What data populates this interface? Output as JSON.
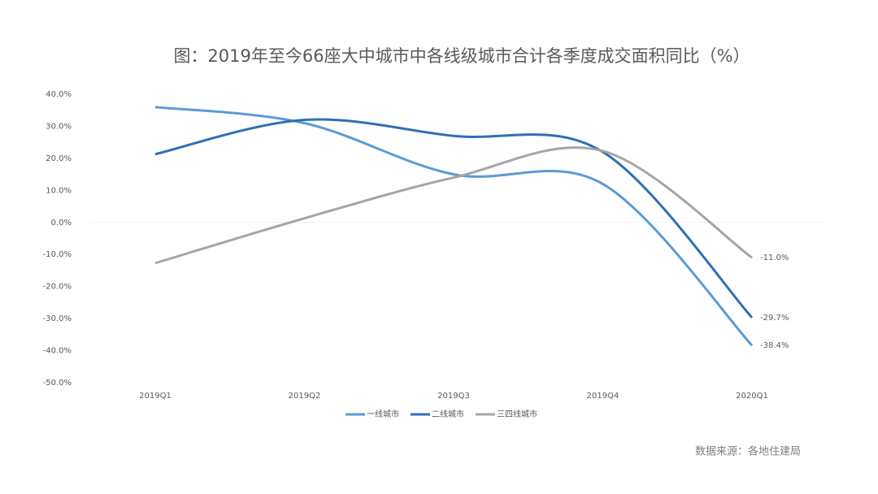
{
  "chart_data": {
    "type": "line",
    "title": "图：2019年至今66座大中城市中各线级城市合计各季度成交面积同比（%）",
    "source": "数据来源：各地住建局",
    "categories": [
      "2019Q1",
      "2019Q2",
      "2019Q3",
      "2019Q4",
      "2020Q1"
    ],
    "series": [
      {
        "name": "一线城市",
        "color": "#5b9bd5",
        "values": [
          36,
          31,
          15,
          12,
          -38.4
        ],
        "value_labels": [
          null,
          null,
          null,
          null,
          "-38.4%"
        ]
      },
      {
        "name": "二线城市",
        "color": "#2e6fb5",
        "values": [
          21.3,
          32,
          27,
          22,
          -29.7
        ],
        "value_labels": [
          null,
          null,
          null,
          null,
          "-29.7%"
        ]
      },
      {
        "name": "三四线城市",
        "color": "#a5a5a5",
        "values": [
          -12.7,
          1.3,
          14,
          22.3,
          -11.0
        ],
        "value_labels": [
          null,
          null,
          null,
          null,
          "-11.0%"
        ]
      }
    ],
    "ylim": [
      -50,
      40
    ],
    "yticks": [
      {
        "value": -50,
        "label": "-50.0%"
      },
      {
        "value": -40,
        "label": "-40.0%"
      },
      {
        "value": -30,
        "label": "-30.0%"
      },
      {
        "value": -20,
        "label": "-20.0%"
      },
      {
        "value": -10,
        "label": "-10.0%"
      },
      {
        "value": 0,
        "label": "0.0%"
      },
      {
        "value": 10,
        "label": "10.0%"
      },
      {
        "value": 20,
        "label": "20.0%"
      },
      {
        "value": 30,
        "label": "30.0%"
      },
      {
        "value": 40,
        "label": "40.0%"
      }
    ],
    "legend": "bottom",
    "smooth": true
  }
}
